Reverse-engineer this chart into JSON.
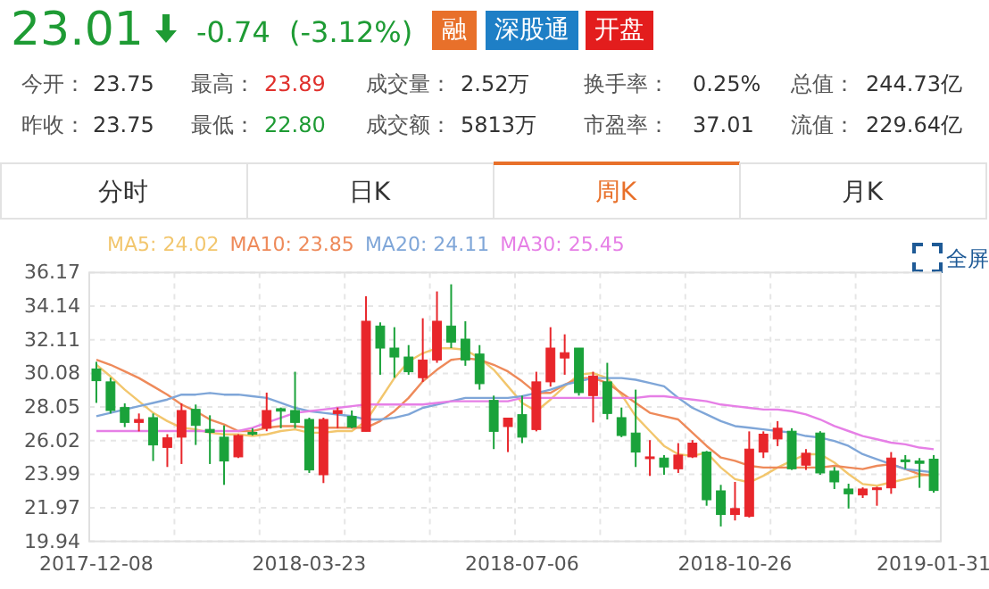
{
  "chart_data": [
    {
      "type": "other",
      "annotations": [
        "23.01",
        "-0.74",
        "(-3.12%)",
        "融",
        "深股通",
        "开盘",
        "今开：",
        "23.75",
        "最高：",
        "23.89",
        "成交量：",
        "2.52万",
        "换手率：",
        "0.25%",
        "总值：",
        "244.73亿",
        "昨收：",
        "23.75",
        "最低：",
        "22.80",
        "成交额：",
        "5813万",
        "市盈率：",
        "37.01",
        "流值：",
        "229.64亿",
        "分时",
        "日K",
        "周K",
        "月K",
        "全屏"
      ]
    },
    {
      "type": "candlestick",
      "categories": [
        "2017-12-08",
        null,
        null,
        null,
        null,
        null,
        null,
        null,
        null,
        null,
        null,
        null,
        null,
        null,
        null,
        "2018-03-23",
        null,
        null,
        null,
        null,
        null,
        null,
        null,
        null,
        null,
        null,
        null,
        null,
        null,
        null,
        "2018-07-06",
        null,
        null,
        null,
        null,
        null,
        null,
        null,
        null,
        null,
        null,
        null,
        null,
        null,
        null,
        "2018-10-26",
        null,
        null,
        null,
        null,
        null,
        null,
        null,
        null,
        null,
        null,
        null,
        null,
        null,
        "2019-01-31"
      ],
      "ohlc": [
        [
          30.35,
          30.78,
          28.3,
          29.64
        ],
        [
          29.57,
          29.82,
          27.66,
          27.84
        ],
        [
          28.02,
          28.27,
          26.84,
          27.12
        ],
        [
          27.12,
          27.66,
          26.58,
          27.3
        ],
        [
          27.41,
          27.66,
          24.79,
          25.76
        ],
        [
          25.61,
          26.41,
          24.43,
          26.19
        ],
        [
          26.23,
          28.27,
          24.61,
          27.84
        ],
        [
          27.91,
          28.2,
          25.76,
          26.94
        ],
        [
          26.7,
          27.55,
          24.61,
          26.52
        ],
        [
          26.23,
          26.94,
          23.35,
          24.79
        ],
        [
          25.04,
          26.41,
          24.97,
          26.33
        ],
        [
          26.52,
          26.77,
          26.33,
          26.41
        ],
        [
          26.77,
          28.92,
          26.59,
          27.84
        ],
        [
          27.95,
          28.02,
          26.77,
          27.8
        ],
        [
          27.84,
          30.18,
          26.77,
          27.12
        ],
        [
          27.3,
          27.41,
          24.07,
          24.25
        ],
        [
          23.96,
          27.41,
          23.46,
          27.3
        ],
        [
          27.66,
          28.02,
          26.77,
          27.84
        ],
        [
          27.48,
          27.84,
          26.77,
          26.84
        ],
        [
          26.58,
          34.74,
          26.58,
          33.23
        ],
        [
          32.94,
          33.16,
          30.0,
          31.61
        ],
        [
          31.61,
          32.87,
          29.82,
          31.07
        ],
        [
          31.07,
          31.79,
          30.0,
          30.18
        ],
        [
          29.82,
          33.41,
          29.57,
          30.89
        ],
        [
          30.89,
          35.03,
          30.72,
          33.23
        ],
        [
          32.94,
          35.46,
          31.61,
          31.97
        ],
        [
          32.15,
          33.23,
          30.54,
          30.89
        ],
        [
          31.25,
          31.79,
          29.1,
          29.46
        ],
        [
          28.45,
          28.74,
          25.51,
          26.58
        ],
        [
          26.87,
          27.38,
          25.33,
          27.38
        ],
        [
          27.59,
          28.74,
          25.87,
          26.23
        ],
        [
          26.69,
          30.18,
          26.58,
          29.57
        ],
        [
          29.57,
          32.87,
          29.28,
          31.61
        ],
        [
          31.01,
          32.44,
          30.0,
          31.33
        ],
        [
          31.61,
          31.61,
          28.74,
          28.92
        ],
        [
          28.74,
          30.18,
          27.12,
          29.92
        ],
        [
          29.57,
          30.72,
          27.3,
          27.66
        ],
        [
          27.41,
          28.02,
          26.23,
          26.33
        ],
        [
          26.48,
          29.1,
          24.43,
          25.33
        ],
        [
          25.0,
          26.05,
          23.89,
          25.04
        ],
        [
          24.97,
          25.15,
          23.96,
          24.43
        ],
        [
          24.32,
          25.87,
          24.07,
          25.15
        ],
        [
          25.04,
          26.05,
          24.97,
          25.87
        ],
        [
          25.33,
          25.4,
          22.09,
          22.45
        ],
        [
          22.99,
          23.35,
          20.84,
          21.56
        ],
        [
          21.56,
          23.53,
          21.2,
          21.92
        ],
        [
          21.45,
          26.58,
          21.38,
          25.51
        ],
        [
          25.33,
          26.58,
          24.97,
          26.41
        ],
        [
          26.12,
          27.2,
          25.69,
          26.77
        ],
        [
          26.59,
          26.77,
          24.25,
          24.32
        ],
        [
          24.54,
          25.51,
          24.25,
          25.26
        ],
        [
          26.48,
          26.59,
          23.96,
          24.07
        ],
        [
          24.18,
          24.43,
          23.1,
          23.53
        ],
        [
          23.1,
          23.42,
          21.92,
          22.81
        ],
        [
          22.74,
          23.2,
          22.56,
          23.1
        ],
        [
          23.06,
          23.24,
          22.09,
          23.17
        ],
        [
          23.17,
          25.33,
          22.81,
          24.97
        ],
        [
          24.86,
          25.15,
          24.32,
          24.75
        ],
        [
          24.79,
          24.97,
          23.17,
          24.65
        ],
        [
          24.9,
          25.15,
          22.88,
          23.01
        ]
      ],
      "series": [
        {
          "name": "MA5: 24.02",
          "type": "line",
          "color": "#f2c66d",
          "values": [
            30.6,
            29.9,
            29.1,
            28.4,
            27.7,
            27.2,
            26.8,
            26.7,
            26.5,
            26.4,
            26.4,
            26.3,
            26.4,
            26.6,
            26.7,
            26.5,
            26.5,
            26.6,
            26.6,
            27.2,
            28.5,
            29.8,
            30.8,
            31.3,
            31.6,
            31.6,
            31.5,
            31.0,
            30.3,
            29.3,
            28.3,
            27.8,
            28.5,
            29.3,
            30.0,
            30.1,
            29.8,
            28.8,
            27.5,
            26.6,
            25.7,
            25.2,
            25.1,
            25.3,
            24.4,
            23.7,
            23.5,
            23.9,
            24.4,
            24.8,
            25.2,
            25.2,
            24.7,
            24.0,
            23.4,
            23.3,
            23.5,
            23.7,
            23.9,
            24.0
          ]
        },
        {
          "name": "MA10: 23.85",
          "type": "line",
          "color": "#ee8a5a",
          "values": [
            30.9,
            30.6,
            30.2,
            29.8,
            29.3,
            28.8,
            28.2,
            27.8,
            27.3,
            27.0,
            26.6,
            26.6,
            26.8,
            26.9,
            26.9,
            26.8,
            26.8,
            26.8,
            26.8,
            26.8,
            27.2,
            27.8,
            28.6,
            29.6,
            30.3,
            30.9,
            31.0,
            30.9,
            30.6,
            30.2,
            29.6,
            28.9,
            28.9,
            29.4,
            29.8,
            29.8,
            29.5,
            28.9,
            28.3,
            27.7,
            27.5,
            27.3,
            26.5,
            25.7,
            25.0,
            24.8,
            24.5,
            24.4,
            24.4,
            24.4,
            24.4,
            24.4,
            24.5,
            24.4,
            24.3,
            24.5,
            24.6,
            24.3,
            24.0,
            23.9
          ]
        },
        {
          "name": "MA20: 24.11",
          "type": "line",
          "color": "#7fa6d8",
          "values": [
            27.5,
            27.7,
            27.9,
            28.1,
            28.3,
            28.5,
            28.8,
            28.8,
            28.9,
            28.8,
            28.8,
            28.7,
            28.6,
            28.3,
            28.0,
            27.8,
            27.7,
            27.6,
            27.5,
            27.3,
            27.3,
            27.4,
            27.6,
            28.0,
            28.2,
            28.4,
            28.6,
            28.6,
            28.6,
            28.6,
            28.7,
            28.9,
            29.1,
            29.4,
            29.6,
            29.8,
            29.8,
            29.8,
            29.7,
            29.5,
            29.3,
            28.6,
            28.0,
            27.6,
            27.2,
            26.9,
            26.8,
            26.7,
            26.6,
            26.5,
            26.3,
            26.2,
            26.0,
            25.7,
            25.2,
            24.9,
            24.6,
            24.3,
            24.2,
            24.1
          ]
        },
        {
          "name": "MA30: 25.45",
          "type": "line",
          "color": "#e67fe6",
          "values": [
            26.6,
            26.6,
            26.6,
            26.6,
            26.6,
            26.6,
            26.6,
            26.6,
            26.6,
            26.6,
            26.6,
            26.8,
            27.1,
            27.4,
            27.7,
            27.8,
            27.9,
            28.0,
            28.1,
            28.2,
            28.2,
            28.2,
            28.2,
            28.2,
            28.3,
            28.4,
            28.4,
            28.4,
            28.4,
            28.4,
            28.6,
            28.6,
            28.6,
            28.6,
            28.6,
            28.6,
            28.6,
            28.6,
            28.6,
            28.7,
            28.7,
            28.6,
            28.5,
            28.4,
            28.2,
            28.1,
            28.0,
            27.9,
            27.9,
            27.8,
            27.6,
            27.3,
            26.9,
            26.6,
            26.3,
            26.1,
            25.9,
            25.8,
            25.6,
            25.5
          ]
        }
      ],
      "ylim": [
        19.94,
        36.17
      ],
      "yticks": [
        19.94,
        21.97,
        23.99,
        26.02,
        28.05,
        30.08,
        32.11,
        34.14,
        36.17
      ],
      "grid": true,
      "legend": "top left"
    }
  ]
}
